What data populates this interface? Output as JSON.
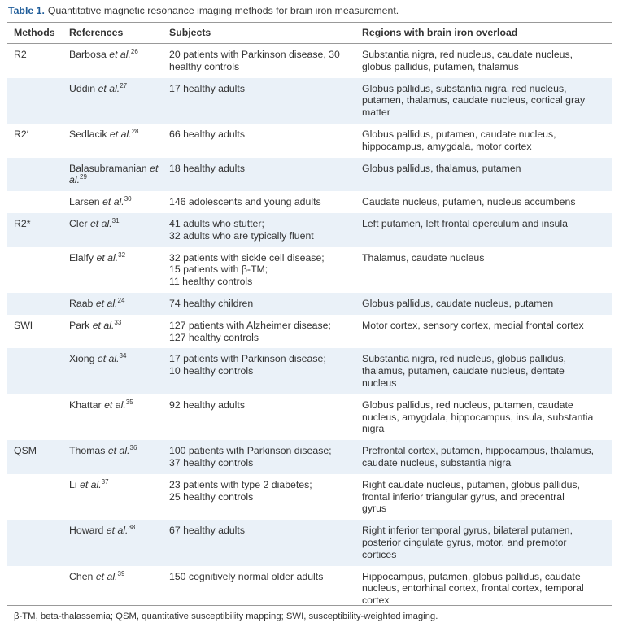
{
  "table": {
    "caption": {
      "label": "Table 1.",
      "text": "Quantitative magnetic resonance imaging methods for brain iron measurement."
    },
    "headers": [
      "Methods",
      "References",
      "Subjects",
      "Regions with brain iron overload"
    ],
    "groups": [
      {
        "method": "R2",
        "rows": [
          {
            "author": "Barbosa",
            "etal": "et al.",
            "ref": "26",
            "subjects": [
              "20 patients with Parkinson disease, 30",
              "healthy controls"
            ],
            "regions": [
              "Substantia nigra, red nucleus, caudate nucleus,",
              "globus pallidus, putamen, thalamus"
            ]
          },
          {
            "author": "Uddin",
            "etal": "et al.",
            "ref": "27",
            "subjects": [
              "17 healthy adults"
            ],
            "regions": [
              "Globus pallidus, substantia nigra, red nucleus,",
              "putamen, thalamus, caudate nucleus, cortical gray",
              "matter"
            ]
          }
        ]
      },
      {
        "method": "R2′",
        "rows": [
          {
            "author": "Sedlacik",
            "etal": "et al.",
            "ref": "28",
            "subjects": [
              "66 healthy adults"
            ],
            "regions": [
              "Globus pallidus, putamen, caudate nucleus,",
              "hippocampus, amygdala, motor cortex"
            ]
          },
          {
            "author": "Balasubramanian",
            "etal": "et al.",
            "ref": "29",
            "subjects": [
              "18 healthy adults"
            ],
            "regions": [
              "Globus pallidus, thalamus, putamen"
            ]
          },
          {
            "author": "Larsen",
            "etal": "et al.",
            "ref": "30",
            "subjects": [
              "146 adolescents and young adults"
            ],
            "regions": [
              "Caudate nucleus, putamen, nucleus accumbens"
            ]
          }
        ]
      },
      {
        "method": "R2*",
        "rows": [
          {
            "author": "Cler",
            "etal": "et al.",
            "ref": "31",
            "subjects": [
              "41 adults who stutter;",
              "32 adults who are typically fluent"
            ],
            "regions": [
              "Left putamen, left frontal operculum and insula"
            ]
          },
          {
            "author": "Elalfy",
            "etal": "et al.",
            "ref": "32",
            "subjects": [
              "32 patients with sickle cell disease;",
              "15 patients with β-TM;",
              "11 healthy controls"
            ],
            "regions": [
              "Thalamus, caudate nucleus"
            ]
          },
          {
            "author": "Raab",
            "etal": "et al.",
            "ref": "24",
            "subjects": [
              "74 healthy children"
            ],
            "regions": [
              "Globus pallidus, caudate nucleus, putamen"
            ]
          }
        ]
      },
      {
        "method": "SWI",
        "rows": [
          {
            "author": "Park",
            "etal": "et al.",
            "ref": "33",
            "subjects": [
              "127 patients with Alzheimer disease;",
              "127 healthy controls"
            ],
            "regions": [
              "Motor cortex, sensory cortex, medial frontal cortex"
            ]
          },
          {
            "author": "Xiong",
            "etal": "et al.",
            "ref": "34",
            "subjects": [
              "17 patients with Parkinson disease;",
              "10 healthy controls"
            ],
            "regions": [
              "Substantia nigra, red nucleus, globus pallidus,",
              "thalamus, putamen, caudate nucleus, dentate",
              "nucleus"
            ]
          },
          {
            "author": "Khattar",
            "etal": "et al.",
            "ref": "35",
            "subjects": [
              "92 healthy adults"
            ],
            "regions": [
              "Globus pallidus, red nucleus, putamen, caudate",
              "nucleus, amygdala, hippocampus, insula, substantia",
              "nigra"
            ]
          }
        ]
      },
      {
        "method": "QSM",
        "rows": [
          {
            "author": "Thomas",
            "etal": "et al.",
            "ref": "36",
            "subjects": [
              "100 patients with Parkinson disease;",
              "37 healthy controls"
            ],
            "regions": [
              "Prefrontal cortex, putamen, hippocampus, thalamus,",
              "caudate nucleus, substantia nigra"
            ]
          },
          {
            "author": "Li",
            "etal": "et al.",
            "ref": "37",
            "subjects": [
              "23 patients with type 2 diabetes;",
              "25 healthy controls"
            ],
            "regions": [
              "Right caudate nucleus, putamen, globus pallidus,",
              "frontal inferior triangular gyrus, and precentral",
              "gyrus"
            ]
          },
          {
            "author": "Howard",
            "etal": "et al.",
            "ref": "38",
            "subjects": [
              "67 healthy adults"
            ],
            "regions": [
              "Right inferior temporal gyrus, bilateral putamen,",
              "posterior cingulate gyrus, motor, and premotor",
              "cortices"
            ]
          },
          {
            "author": "Chen",
            "etal": "et al.",
            "ref": "39",
            "subjects": [
              "150 cognitively normal older adults"
            ],
            "regions": [
              "Hippocampus, putamen, globus pallidus, caudate",
              "nucleus, entorhinal cortex, frontal cortex, temporal",
              "cortex"
            ]
          }
        ]
      }
    ],
    "footnote": "β-TM, beta-thalassemia; QSM, quantitative susceptibility mapping; SWI, susceptibility-weighted imaging."
  }
}
